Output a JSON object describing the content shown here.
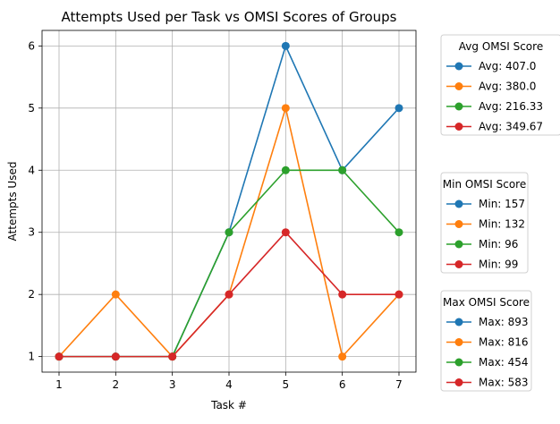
{
  "chart_data": {
    "type": "line",
    "title": "Attempts Used per Task vs OMSI Scores of Groups",
    "xlabel": "Task #",
    "ylabel": "Attempts Used",
    "x": [
      1,
      2,
      3,
      4,
      5,
      6,
      7
    ],
    "xlim": [
      0.7,
      7.3
    ],
    "ylim": [
      0.75,
      6.25
    ],
    "xticks": [
      1,
      2,
      3,
      4,
      5,
      6,
      7
    ],
    "yticks": [
      1,
      2,
      3,
      4,
      5,
      6
    ],
    "grid": true,
    "marker": "circle",
    "series": [
      {
        "color": "#1f77b4",
        "values": [
          1,
          1,
          1,
          3,
          6,
          4,
          5
        ]
      },
      {
        "color": "#ff7f0e",
        "values": [
          1,
          2,
          1,
          2,
          5,
          1,
          2
        ]
      },
      {
        "color": "#2ca02c",
        "values": [
          1,
          1,
          1,
          3,
          4,
          4,
          3
        ]
      },
      {
        "color": "#d62728",
        "values": [
          1,
          1,
          1,
          2,
          3,
          2,
          2
        ]
      }
    ],
    "legends": [
      {
        "title": "Avg OMSI Score",
        "placement": "outside right, top",
        "entries": [
          "Avg: 407.0",
          "Avg: 380.0",
          "Avg: 216.33",
          "Avg: 349.67"
        ]
      },
      {
        "title": "Min OMSI Score",
        "placement": "outside right, middle",
        "entries": [
          "Min: 157",
          "Min: 132",
          "Min: 96",
          "Min: 99"
        ]
      },
      {
        "title": "Max OMSI Score",
        "placement": "outside right, bottom",
        "entries": [
          "Max: 893",
          "Max: 816",
          "Max: 454",
          "Max: 583"
        ]
      }
    ]
  }
}
